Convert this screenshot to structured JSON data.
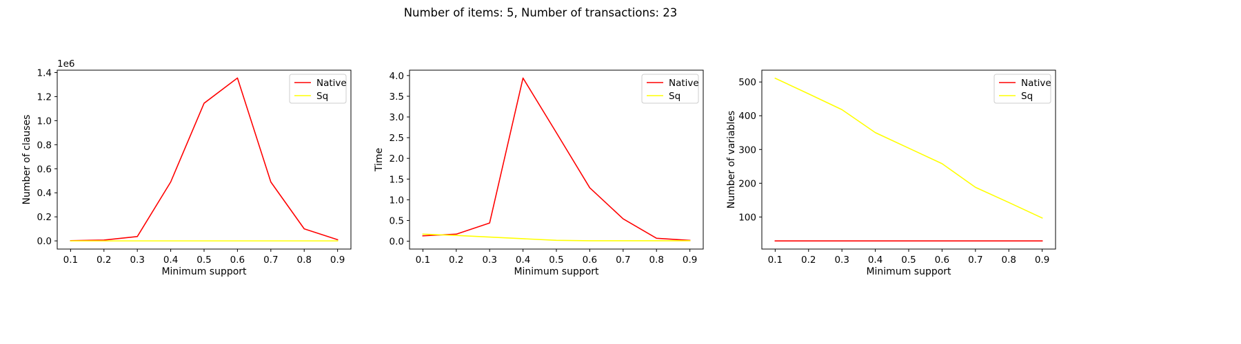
{
  "figure": {
    "suptitle": "Number of items: 5, Number of transactions: 23"
  },
  "chart_data": [
    {
      "type": "line",
      "title": "",
      "xlabel": "Minimum support",
      "ylabel": "Number of clauses",
      "offset_label": "1e6",
      "x": [
        0.1,
        0.2,
        0.3,
        0.4,
        0.5,
        0.6,
        0.7,
        0.8,
        0.9
      ],
      "xticks": [
        "0.1",
        "0.2",
        "0.3",
        "0.4",
        "0.5",
        "0.6",
        "0.7",
        "0.8",
        "0.9"
      ],
      "xlim": [
        0.06,
        0.94
      ],
      "yticks": [
        0.0,
        0.2,
        0.4,
        0.6,
        0.8,
        1.0,
        1.2,
        1.4
      ],
      "ytick_labels": [
        "0.0",
        "0.2",
        "0.4",
        "0.6",
        "0.8",
        "1.0",
        "1.2",
        "1.4"
      ],
      "ylim": [
        -0.068,
        1.42
      ],
      "legend": "top-right",
      "grid": false,
      "series": [
        {
          "name": "Native",
          "color": "#ff0000",
          "values": [
            0.002,
            0.007,
            0.036,
            0.49,
            1.145,
            1.355,
            0.49,
            0.1,
            0.01
          ]
        },
        {
          "name": "Sq",
          "color": "#ffff00",
          "values": [
            0.0,
            0.0,
            0.0,
            0.0,
            0.0,
            0.0,
            0.0,
            0.0,
            0.0
          ]
        }
      ]
    },
    {
      "type": "line",
      "title": "",
      "xlabel": "Minimum support",
      "ylabel": "Time",
      "offset_label": "",
      "x": [
        0.1,
        0.2,
        0.3,
        0.4,
        0.5,
        0.6,
        0.7,
        0.8,
        0.9
      ],
      "xticks": [
        "0.1",
        "0.2",
        "0.3",
        "0.4",
        "0.5",
        "0.6",
        "0.7",
        "0.8",
        "0.9"
      ],
      "xlim": [
        0.06,
        0.94
      ],
      "yticks": [
        0.0,
        0.5,
        1.0,
        1.5,
        2.0,
        2.5,
        3.0,
        3.5,
        4.0
      ],
      "ytick_labels": [
        "0.0",
        "0.5",
        "1.0",
        "1.5",
        "2.0",
        "2.5",
        "3.0",
        "3.5",
        "4.0"
      ],
      "ylim": [
        -0.19,
        4.13
      ],
      "legend": "top-right",
      "grid": false,
      "series": [
        {
          "name": "Native",
          "color": "#ff0000",
          "values": [
            0.13,
            0.17,
            0.44,
            3.94,
            2.62,
            1.29,
            0.54,
            0.07,
            0.02
          ]
        },
        {
          "name": "Sq",
          "color": "#ffff00",
          "values": [
            0.17,
            0.14,
            0.1,
            0.06,
            0.02,
            0.01,
            0.01,
            0.01,
            0.01
          ]
        }
      ]
    },
    {
      "type": "line",
      "title": "",
      "xlabel": "Minimum support",
      "ylabel": "Number of variables",
      "offset_label": "",
      "x": [
        0.1,
        0.2,
        0.3,
        0.4,
        0.5,
        0.6,
        0.7,
        0.8,
        0.9
      ],
      "xticks": [
        "0.1",
        "0.2",
        "0.3",
        "0.4",
        "0.5",
        "0.6",
        "0.7",
        "0.8",
        "0.9"
      ],
      "xlim": [
        0.06,
        0.94
      ],
      "yticks": [
        100,
        200,
        300,
        400,
        500
      ],
      "ytick_labels": [
        "100",
        "200",
        "300",
        "400",
        "500"
      ],
      "ylim": [
        5,
        535
      ],
      "legend": "top-right",
      "grid": false,
      "series": [
        {
          "name": "Native",
          "color": "#ff0000",
          "values": [
            29,
            29,
            29,
            29,
            29,
            29,
            29,
            29,
            29
          ]
        },
        {
          "name": "Sq",
          "color": "#ffff00",
          "values": [
            511,
            465,
            418,
            350,
            304,
            258,
            188,
            143,
            97
          ]
        }
      ]
    }
  ]
}
